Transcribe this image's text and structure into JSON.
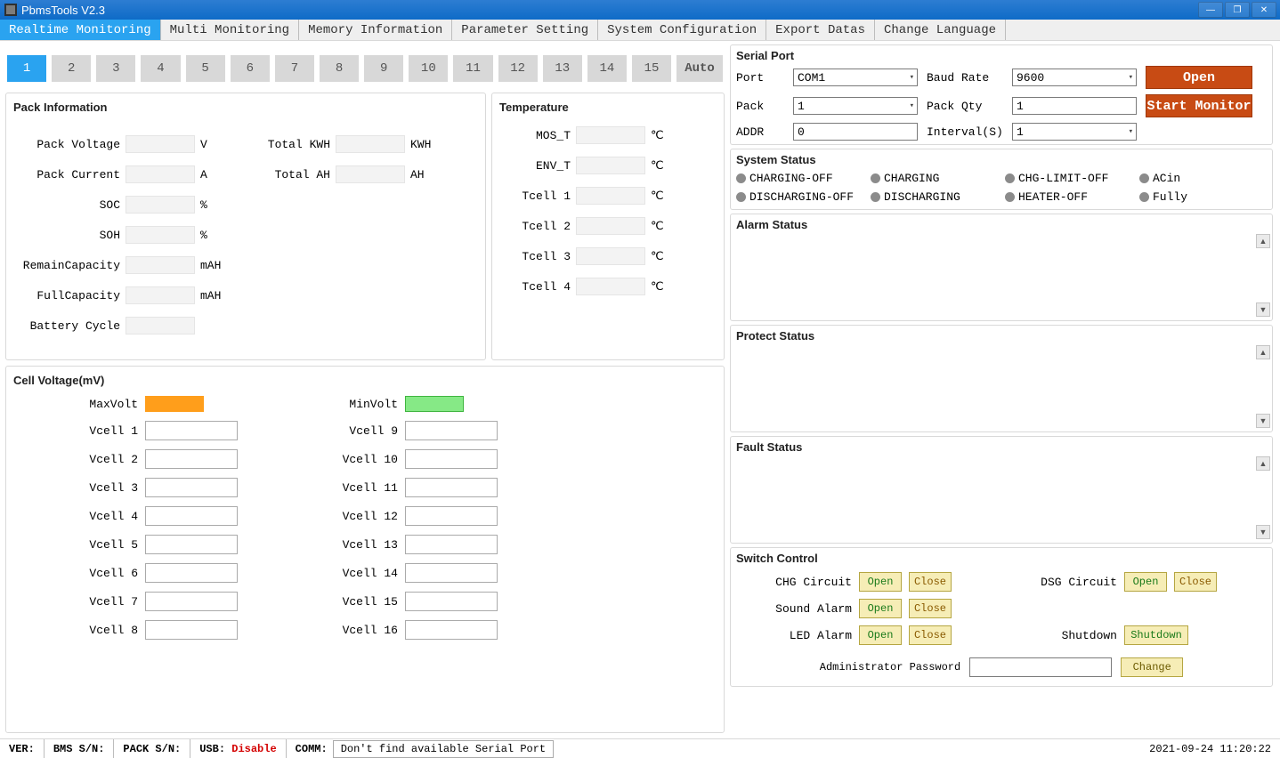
{
  "window": {
    "title": "PbmsTools V2.3"
  },
  "menu": {
    "items": [
      "Realtime Monitoring",
      "Multi Monitoring",
      "Memory Information",
      "Parameter Setting",
      "System Configuration",
      "Export Datas",
      "Change Language"
    ],
    "active_index": 0
  },
  "pack_tabs": {
    "count": 15,
    "active": 1,
    "auto_label": "Auto"
  },
  "pack_info": {
    "title": "Pack Information",
    "fields_left": [
      {
        "label": "Pack Voltage",
        "unit": "V"
      },
      {
        "label": "Pack Current",
        "unit": "A"
      },
      {
        "label": "SOC",
        "unit": "%"
      },
      {
        "label": "SOH",
        "unit": "%"
      },
      {
        "label": "RemainCapacity",
        "unit": "mAH"
      },
      {
        "label": "FullCapacity",
        "unit": "mAH"
      },
      {
        "label": "Battery Cycle",
        "unit": ""
      }
    ],
    "fields_right": [
      {
        "label": "Total KWH",
        "unit": "KWH"
      },
      {
        "label": "Total AH",
        "unit": "AH"
      }
    ]
  },
  "temperature": {
    "title": "Temperature",
    "fields": [
      {
        "label": "MOS_T",
        "unit": "℃"
      },
      {
        "label": "ENV_T",
        "unit": "℃"
      },
      {
        "label": "Tcell 1",
        "unit": "℃"
      },
      {
        "label": "Tcell 2",
        "unit": "℃"
      },
      {
        "label": "Tcell 3",
        "unit": "℃"
      },
      {
        "label": "Tcell 4",
        "unit": "℃"
      }
    ]
  },
  "cell_voltage": {
    "title": "Cell Voltage(mV)",
    "max_label": "MaxVolt",
    "min_label": "MinVolt",
    "left_cells": [
      "Vcell 1",
      "Vcell 2",
      "Vcell 3",
      "Vcell 4",
      "Vcell 5",
      "Vcell 6",
      "Vcell 7",
      "Vcell 8"
    ],
    "right_cells": [
      "Vcell 9",
      "Vcell 10",
      "Vcell 11",
      "Vcell 12",
      "Vcell 13",
      "Vcell 14",
      "Vcell 15",
      "Vcell 16"
    ],
    "max_color": "#ff9e1b",
    "min_color": "#86e986"
  },
  "serial": {
    "title": "Serial Port",
    "port_label": "Port",
    "port_value": "COM1",
    "baud_label": "Baud Rate",
    "baud_value": "9600",
    "pack_label": "Pack",
    "pack_value": "1",
    "qty_label": "Pack Qty",
    "qty_value": "1",
    "addr_label": "ADDR",
    "addr_value": "0",
    "interval_label": "Interval(S)",
    "interval_value": "1",
    "open_btn": "Open",
    "start_btn": "Start Monitor",
    "btn_bg": "#c84b14"
  },
  "system_status": {
    "title": "System Status",
    "items": [
      "CHARGING-OFF",
      "CHARGING",
      "CHG-LIMIT-OFF",
      "ACin",
      "DISCHARGING-OFF",
      "DISCHARGING",
      "HEATER-OFF",
      "Fully"
    ]
  },
  "alarm": {
    "title": "Alarm Status"
  },
  "protect": {
    "title": "Protect Status"
  },
  "fault": {
    "title": "Fault Status"
  },
  "switchctl": {
    "title": "Switch Control",
    "rows": [
      {
        "label": "CHG Circuit",
        "b1": "Open",
        "b2": "Close",
        "rlabel": "DSG Circuit",
        "rb1": "Open",
        "rb2": "Close"
      },
      {
        "label": "Sound Alarm",
        "b1": "Open",
        "b2": "Close",
        "rlabel": "",
        "rb1": "",
        "rb2": ""
      },
      {
        "label": "LED Alarm",
        "b1": "Open",
        "b2": "Close",
        "rlabel": "Shutdown",
        "rb1": "Shutdown",
        "rb2": ""
      }
    ],
    "admin_label": "Administrator Password",
    "change_btn": "Change"
  },
  "statusbar": {
    "ver": "VER:",
    "bms": "BMS S/N:",
    "pack": "PACK S/N:",
    "usb_label": "USB:",
    "usb_state": "Disable",
    "comm_label": "COMM:",
    "comm_msg": "Don't find available Serial Port",
    "datetime": "2021-09-24 11:20:22"
  }
}
